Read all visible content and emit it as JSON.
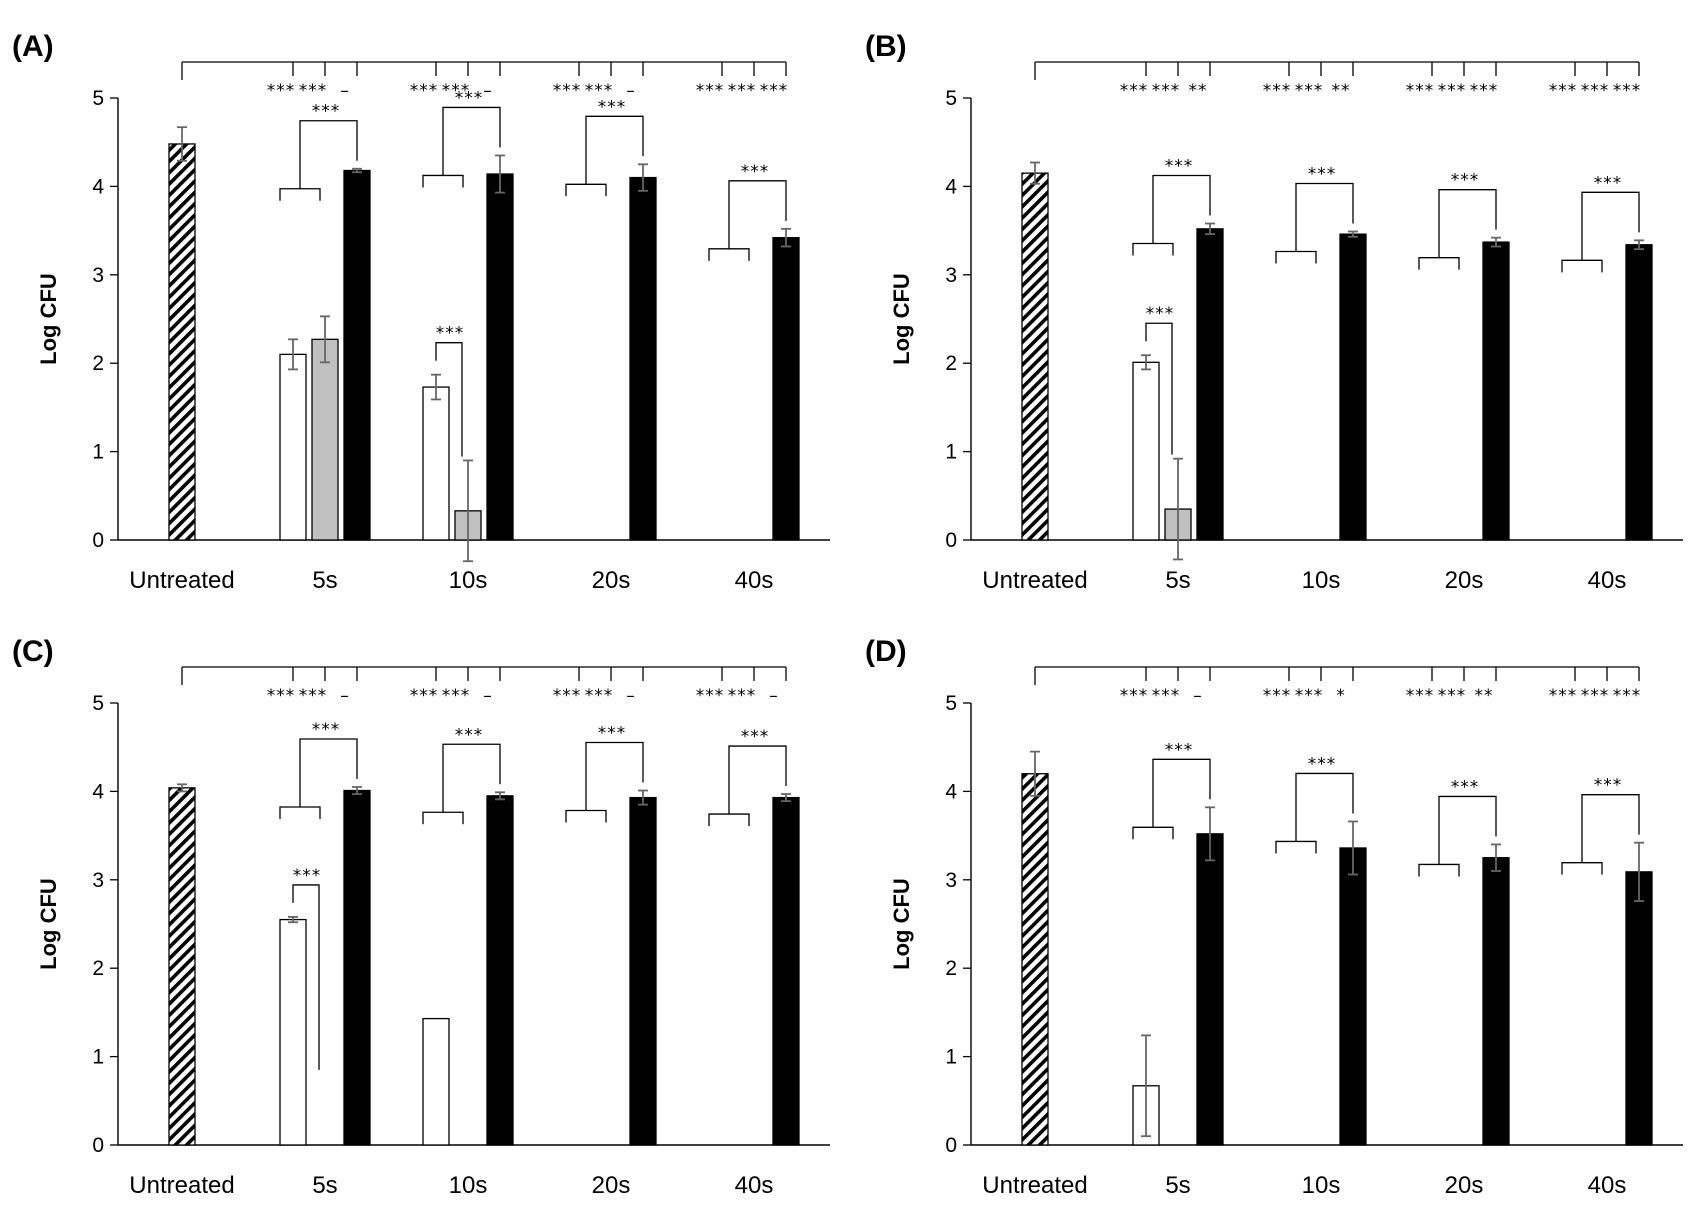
{
  "chart_data": [
    {
      "type": "bar",
      "panel_label": "(A)",
      "ylabel": "Log CFU",
      "ylim": [
        0,
        5
      ],
      "yticks": [
        "0",
        "1",
        "2",
        "3",
        "4",
        "5"
      ],
      "categories": [
        "Untreated",
        "5s",
        "10s",
        "20s",
        "40s"
      ],
      "series": [
        {
          "name": "untreated",
          "fill": "hatched",
          "values": [
            4.48,
            null,
            null,
            null,
            null
          ],
          "errors": [
            0.19,
            null,
            null,
            null,
            null
          ]
        },
        {
          "name": "white",
          "fill": "#ffffff",
          "values": [
            null,
            2.1,
            1.73,
            null,
            null
          ],
          "errors": [
            null,
            0.17,
            0.14,
            null,
            null
          ]
        },
        {
          "name": "gray",
          "fill": "#c0c0c0",
          "values": [
            null,
            2.27,
            0.33,
            null,
            null
          ],
          "errors": [
            null,
            0.26,
            0.57,
            null,
            null
          ]
        },
        {
          "name": "black",
          "fill": "#000000",
          "values": [
            null,
            4.18,
            4.14,
            4.1,
            3.42
          ],
          "errors": [
            null,
            0.02,
            0.21,
            0.15,
            0.1
          ]
        }
      ],
      "top_significance": [
        [
          "***",
          "***",
          "–"
        ],
        [
          "***",
          "***",
          "–"
        ],
        [
          "***",
          "***",
          "–"
        ],
        [
          "***",
          "***",
          "***"
        ]
      ],
      "bracket_significance": [
        "***",
        "***",
        "***",
        "***"
      ],
      "inner_significance": [
        null,
        "***",
        null,
        null
      ]
    },
    {
      "type": "bar",
      "panel_label": "(B)",
      "ylabel": "Log CFU",
      "ylim": [
        0,
        5
      ],
      "yticks": [
        "0",
        "1",
        "2",
        "3",
        "4",
        "5"
      ],
      "categories": [
        "Untreated",
        "5s",
        "10s",
        "20s",
        "40s"
      ],
      "series": [
        {
          "name": "untreated",
          "fill": "hatched",
          "values": [
            4.15,
            null,
            null,
            null,
            null
          ],
          "errors": [
            0.12,
            null,
            null,
            null,
            null
          ]
        },
        {
          "name": "white",
          "fill": "#ffffff",
          "values": [
            null,
            2.01,
            null,
            null,
            null
          ],
          "errors": [
            null,
            0.08,
            null,
            null,
            null
          ]
        },
        {
          "name": "gray",
          "fill": "#c0c0c0",
          "values": [
            null,
            0.35,
            null,
            null,
            null
          ],
          "errors": [
            null,
            0.57,
            null,
            null,
            null
          ]
        },
        {
          "name": "black",
          "fill": "#000000",
          "values": [
            null,
            3.52,
            3.46,
            3.37,
            3.34
          ],
          "errors": [
            null,
            0.06,
            0.03,
            0.05,
            0.05
          ]
        }
      ],
      "top_significance": [
        [
          "***",
          "***",
          "**"
        ],
        [
          "***",
          "***",
          "**"
        ],
        [
          "***",
          "***",
          "***"
        ],
        [
          "***",
          "***",
          "***"
        ]
      ],
      "bracket_significance": [
        "***",
        "***",
        "***",
        "***"
      ],
      "inner_significance": [
        "***",
        null,
        null,
        null
      ]
    },
    {
      "type": "bar",
      "panel_label": "(C)",
      "ylabel": "Log CFU",
      "ylim": [
        0,
        5
      ],
      "yticks": [
        "0",
        "1",
        "2",
        "3",
        "4",
        "5"
      ],
      "categories": [
        "Untreated",
        "5s",
        "10s",
        "20s",
        "40s"
      ],
      "series": [
        {
          "name": "untreated",
          "fill": "hatched",
          "values": [
            4.04,
            null,
            null,
            null,
            null
          ],
          "errors": [
            0.04,
            null,
            null,
            null,
            null
          ]
        },
        {
          "name": "white",
          "fill": "#ffffff",
          "values": [
            null,
            2.55,
            1.43,
            null,
            null
          ],
          "errors": [
            null,
            0.03,
            0.0,
            null,
            null
          ]
        },
        {
          "name": "gray",
          "fill": "#c0c0c0",
          "values": [
            null,
            null,
            null,
            null,
            null
          ],
          "errors": [
            null,
            null,
            null,
            null,
            null
          ]
        },
        {
          "name": "black",
          "fill": "#000000",
          "values": [
            null,
            4.01,
            3.95,
            3.93,
            3.93
          ],
          "errors": [
            null,
            0.04,
            0.04,
            0.08,
            0.04
          ]
        }
      ],
      "top_significance": [
        [
          "***",
          "***",
          "–"
        ],
        [
          "***",
          "***",
          "–"
        ],
        [
          "***",
          "***",
          "–"
        ],
        [
          "***",
          "***",
          "–"
        ]
      ],
      "bracket_significance": [
        "***",
        "***",
        "***",
        "***"
      ],
      "inner_significance": [
        "***",
        null,
        null,
        null
      ]
    },
    {
      "type": "bar",
      "panel_label": "(D)",
      "ylabel": "Log CFU",
      "ylim": [
        0,
        5
      ],
      "yticks": [
        "0",
        "1",
        "2",
        "3",
        "4",
        "5"
      ],
      "categories": [
        "Untreated",
        "5s",
        "10s",
        "20s",
        "40s"
      ],
      "series": [
        {
          "name": "untreated",
          "fill": "hatched",
          "values": [
            4.2,
            null,
            null,
            null,
            null
          ],
          "errors": [
            0.25,
            null,
            null,
            null,
            null
          ]
        },
        {
          "name": "white",
          "fill": "#ffffff",
          "values": [
            null,
            0.67,
            null,
            null,
            null
          ],
          "errors": [
            null,
            0.57,
            null,
            null,
            null
          ]
        },
        {
          "name": "gray",
          "fill": "#c0c0c0",
          "values": [
            null,
            null,
            null,
            null,
            null
          ],
          "errors": [
            null,
            null,
            null,
            null,
            null
          ]
        },
        {
          "name": "black",
          "fill": "#000000",
          "values": [
            null,
            3.52,
            3.36,
            3.25,
            3.09
          ],
          "errors": [
            null,
            0.3,
            0.3,
            0.15,
            0.33
          ]
        }
      ],
      "top_significance": [
        [
          "***",
          "***",
          "–"
        ],
        [
          "***",
          "***",
          "*"
        ],
        [
          "***",
          "***",
          "**"
        ],
        [
          "***",
          "***",
          "***"
        ]
      ],
      "bracket_significance": [
        "***",
        "***",
        "***",
        "***"
      ],
      "inner_significance": [
        null,
        null,
        null,
        null
      ]
    }
  ]
}
